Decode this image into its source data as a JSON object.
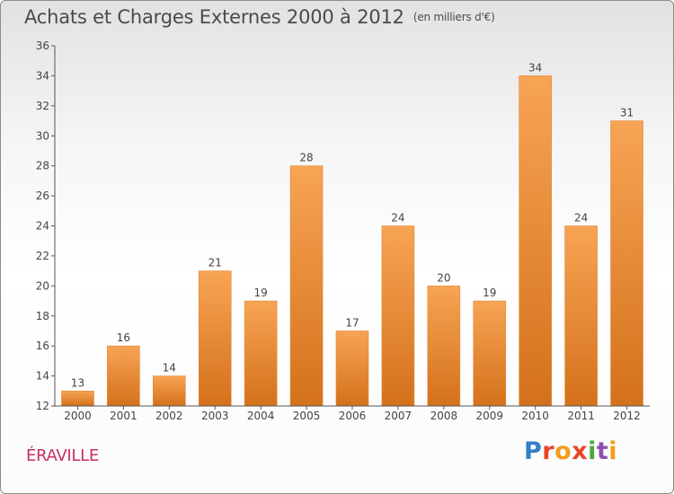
{
  "header": {
    "title": "Achats et Charges Externes 2000 à 2012",
    "unit": "(en milliers d'€)"
  },
  "footer": {
    "commune": "ÉRAVILLE",
    "logo_text": "Proxiti"
  },
  "colors": {
    "bar_top": "#f7a455",
    "bar_bottom": "#d4711b",
    "axis": "#555555",
    "commune": "#c8305f"
  },
  "chart_data": {
    "type": "bar",
    "title": "Achats et Charges Externes 2000 à 2012",
    "subtitle": "(en milliers d'€)",
    "xlabel": "",
    "ylabel": "",
    "categories": [
      "2000",
      "2001",
      "2002",
      "2003",
      "2004",
      "2005",
      "2006",
      "2007",
      "2008",
      "2009",
      "2010",
      "2011",
      "2012"
    ],
    "values": [
      13,
      16,
      14,
      21,
      19,
      28,
      17,
      24,
      20,
      19,
      34,
      24,
      31
    ],
    "ylim": [
      12,
      36
    ],
    "yticks": [
      12,
      14,
      16,
      18,
      20,
      22,
      24,
      26,
      28,
      30,
      32,
      34,
      36
    ],
    "grid": false,
    "legend": "none",
    "data_labels": true
  }
}
